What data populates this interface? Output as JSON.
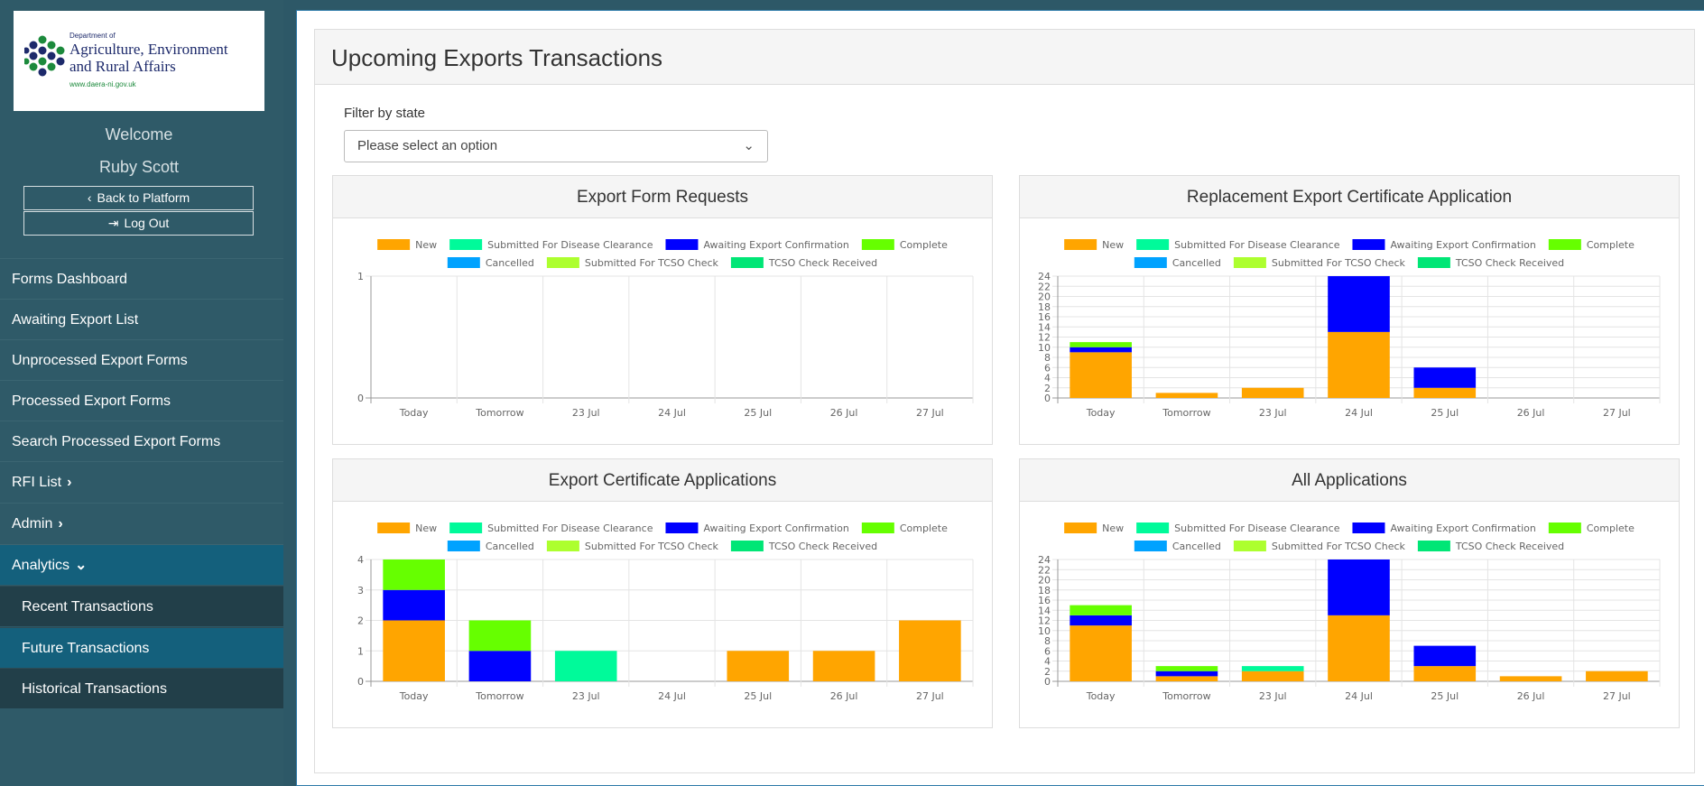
{
  "logo": {
    "dept": "Department of",
    "line1": "Agriculture, Environment",
    "line2": "and Rural Affairs",
    "url": "www.daera-ni.gov.uk"
  },
  "user": {
    "welcome": "Welcome",
    "name": "Ruby Scott"
  },
  "buttons": {
    "back": "Back to Platform",
    "logout": "Log Out"
  },
  "nav": {
    "forms_dashboard": "Forms Dashboard",
    "awaiting": "Awaiting Export List",
    "unprocessed": "Unprocessed Export Forms",
    "processed": "Processed Export Forms",
    "search_processed": "Search Processed Export Forms",
    "rfi": "RFI List",
    "admin": "Admin",
    "analytics": "Analytics",
    "recent": "Recent Transactions",
    "future": "Future Transactions",
    "historical": "Historical Transactions"
  },
  "page": {
    "title": "Upcoming Exports Transactions",
    "filter_label": "Filter by state",
    "filter_placeholder": "Please select an option"
  },
  "colors": {
    "New": "#ffa500",
    "Submitted For Disease Clearance": "#00fa9a",
    "Awaiting Export Confirmation": "#0000ff",
    "Complete": "#66ff00",
    "Cancelled": "#00a2ff",
    "Submitted For TCSO Check": "#adff2f",
    "TCSO Check Received": "#00e676"
  },
  "chart_data": [
    {
      "type": "bar",
      "stacked": true,
      "title": "Export Form Requests",
      "categories": [
        "Today",
        "Tomorrow",
        "23 Jul",
        "24 Jul",
        "25 Jul",
        "26 Jul",
        "27 Jul"
      ],
      "yticks": [
        0,
        1
      ],
      "ylim": [
        0,
        1
      ],
      "series": []
    },
    {
      "type": "bar",
      "stacked": true,
      "title": "Replacement Export Certificate Application",
      "categories": [
        "Today",
        "Tomorrow",
        "23 Jul",
        "24 Jul",
        "25 Jul",
        "26 Jul",
        "27 Jul"
      ],
      "yticks": [
        0,
        2,
        4,
        6,
        8,
        10,
        12,
        14,
        16,
        18,
        20,
        22,
        24
      ],
      "ylim": [
        0,
        24
      ],
      "series": [
        {
          "name": "New",
          "values": [
            9,
            1,
            2,
            13,
            2,
            0,
            0
          ]
        },
        {
          "name": "Awaiting Export Confirmation",
          "values": [
            1,
            0,
            0,
            11,
            4,
            0,
            0
          ]
        },
        {
          "name": "Complete",
          "values": [
            1,
            0,
            0,
            0,
            0,
            0,
            0
          ]
        }
      ]
    },
    {
      "type": "bar",
      "stacked": true,
      "title": "Export Certificate Applications",
      "categories": [
        "Today",
        "Tomorrow",
        "23 Jul",
        "24 Jul",
        "25 Jul",
        "26 Jul",
        "27 Jul"
      ],
      "yticks": [
        0,
        1,
        2,
        3,
        4
      ],
      "ylim": [
        0,
        4
      ],
      "series": [
        {
          "name": "New",
          "values": [
            2,
            0,
            0,
            0,
            1,
            1,
            2
          ]
        },
        {
          "name": "Submitted For Disease Clearance",
          "values": [
            0,
            0,
            1,
            0,
            0,
            0,
            0
          ]
        },
        {
          "name": "Awaiting Export Confirmation",
          "values": [
            1,
            1,
            0,
            0,
            0,
            0,
            0
          ]
        },
        {
          "name": "Complete",
          "values": [
            1,
            1,
            0,
            0,
            0,
            0,
            0
          ]
        }
      ]
    },
    {
      "type": "bar",
      "stacked": true,
      "title": "All Applications",
      "categories": [
        "Today",
        "Tomorrow",
        "23 Jul",
        "24 Jul",
        "25 Jul",
        "26 Jul",
        "27 Jul"
      ],
      "yticks": [
        0,
        2,
        4,
        6,
        8,
        10,
        12,
        14,
        16,
        18,
        20,
        22,
        24
      ],
      "ylim": [
        0,
        24
      ],
      "series": [
        {
          "name": "New",
          "values": [
            11,
            1,
            2,
            13,
            3,
            1,
            2
          ]
        },
        {
          "name": "Submitted For Disease Clearance",
          "values": [
            0,
            0,
            1,
            0,
            0,
            0,
            0
          ]
        },
        {
          "name": "Awaiting Export Confirmation",
          "values": [
            2,
            1,
            0,
            11,
            4,
            0,
            0
          ]
        },
        {
          "name": "Complete",
          "values": [
            2,
            1,
            0,
            0,
            0,
            0,
            0
          ]
        }
      ]
    }
  ],
  "legend": [
    [
      "New",
      "Submitted For Disease Clearance",
      "Awaiting Export Confirmation",
      "Complete"
    ],
    [
      "Cancelled",
      "Submitted For TCSO Check",
      "TCSO Check Received"
    ]
  ]
}
